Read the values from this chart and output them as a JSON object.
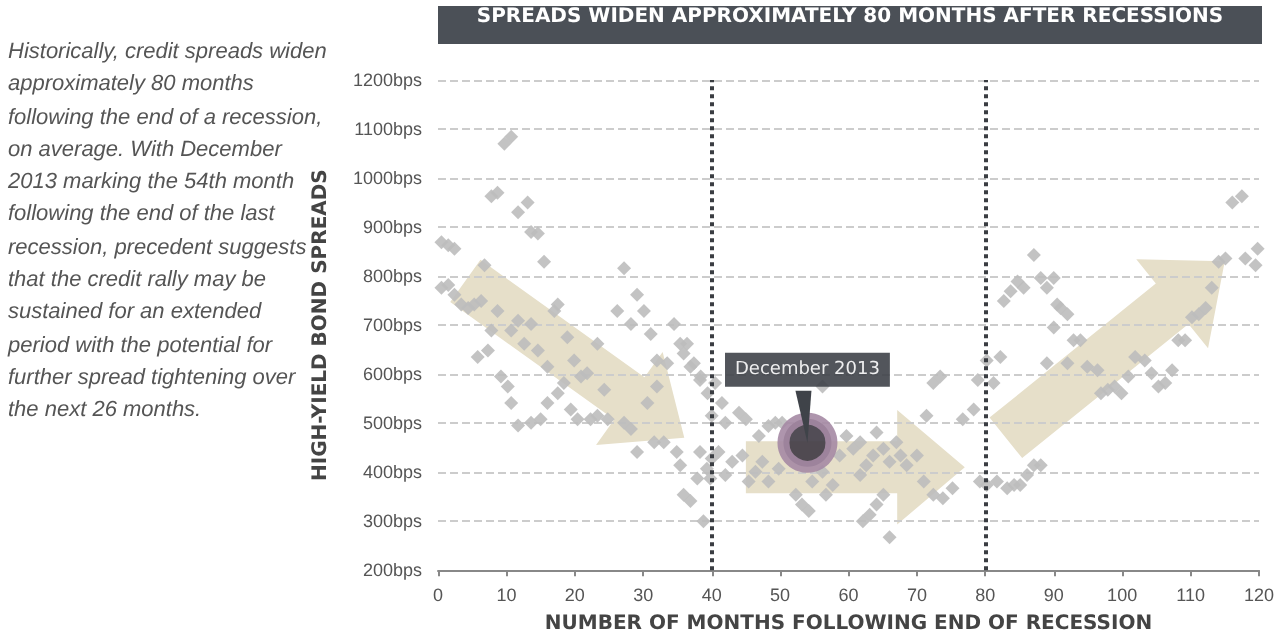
{
  "chart_data": {
    "type": "scatter",
    "title": "SPREADS WIDEN APPROXIMATELY 80 MONTHS AFTER RECESSIONS",
    "xlabel": "NUMBER OF MONTHS FOLLOWING END OF RECESSION",
    "ylabel": "HIGH-YIELD BOND SPREADS",
    "annotations": [
      "Historically, credit spreads widen approximately 80 months following the end of a recession, on average. With December 2013 marking the 54th month following the end of the last recession, precedent suggests that the credit rally may be sustained for an extended period with the potential for further spread tightening over the next 26 months.",
      {
        "text": "December 2013",
        "x": 54,
        "y": 460
      }
    ],
    "series": [
      {
        "color": "#bdbdbd",
        "x": [
          0.5,
          1.5,
          2.4,
          0.5,
          1.5,
          2.4,
          3.4,
          4.4,
          5.3,
          6.3,
          6.8,
          5.8,
          7.3,
          7.8,
          8.7,
          7.8,
          8.7,
          9.7,
          10.7,
          9.2,
          10.2,
          10.7,
          11.7,
          10.7,
          11.7,
          11.7,
          13.1,
          13.6,
          14.6,
          12.6,
          13.6,
          13.6,
          15,
          14.6,
          15.5,
          16,
          17,
          17.5,
          16,
          17.5,
          18.4,
          18.9,
          19.9,
          19.4,
          20.4,
          20.9,
          21.8,
          22.3,
          23.3,
          23.3,
          24.3,
          24.8,
          26.2,
          27.2,
          28.2,
          27.2,
          28.2,
          29.1,
          30.1,
          31.1,
          29.1,
          30.6,
          31.6,
          32,
          33.5,
          32,
          33,
          34.5,
          35.4,
          35.9,
          34.9,
          35.4,
          35.9,
          36.9,
          37.9,
          38.3,
          38.8,
          36.9,
          38.3,
          39.3,
          39.8,
          36.4,
          37.4,
          38.4,
          39.4,
          40.5,
          40,
          41.5,
          42,
          41,
          40,
          42,
          43,
          44,
          45,
          44.5,
          45.4,
          46.4,
          47.4,
          46.9,
          48.3,
          49.3,
          50.3,
          48.3,
          49.8,
          52.3,
          53.2,
          54.2,
          54.7,
          56.2,
          56.7,
          57.7,
          58.7,
          56.2,
          59.7,
          60.7,
          61.7,
          62.1,
          63.1,
          64.1,
          65.1,
          66,
          61.7,
          62.6,
          63.6,
          64.1,
          65.1,
          66,
          67,
          67.6,
          68.5,
          70,
          71,
          72.4,
          73.8,
          75.2,
          72.4,
          73.4,
          76.7,
          78.3,
          79.2,
          80.2,
          71.4,
          78.9,
          80.2,
          81.2,
          82.2,
          81.7,
          83.2,
          84.2,
          85.1,
          86.1,
          87.1,
          88.1,
          82.7,
          83.7,
          84.7,
          85.6,
          87.1,
          88.1,
          89,
          90,
          90,
          90.5,
          91,
          92,
          89,
          92,
          92.9,
          93.9,
          94.9,
          96.4,
          96.9,
          97.9,
          98.9,
          99.9,
          100.9,
          101.9,
          103.3,
          104.3,
          105.3,
          106.3,
          107.3,
          108.2,
          109.2,
          110.2,
          111.2,
          112.2,
          113.1,
          114.1,
          115.1,
          116.1,
          117.5,
          118,
          119.5,
          119.8
        ],
        "values": [
          869,
          863,
          856,
          776,
          782,
          762,
          742,
          735,
          742,
          749,
          822,
          635,
          648,
          689,
          729,
          963,
          970,
          1070,
          1084,
          595,
          575,
          541,
          495,
          689,
          709,
          930,
          950,
          890,
          887,
          662,
          702,
          501,
          508,
          648,
          829,
          615,
          729,
          742,
          541,
          561,
          582,
          675,
          628,
          528,
          508,
          595,
          602,
          508,
          515,
          662,
          568,
          508,
          729,
          816,
          702,
          501,
          488,
          762,
          729,
          682,
          441,
          541,
          461,
          628,
          622,
          575,
          461,
          702,
          662,
          642,
          441,
          414,
          354,
          341,
          387,
          441,
          300,
          615,
          588,
          407,
          387,
          662,
          622,
          595,
          561,
          582,
          515,
          541,
          501,
          441,
          428,
          394,
          421,
          521,
          508,
          434,
          381,
          401,
          421,
          474,
          494,
          501,
          501,
          381,
          407,
          354,
          334,
          321,
          381,
          401,
          354,
          374,
          434,
          575,
          474,
          448,
          461,
          300,
          313,
          334,
          354,
          267,
          394,
          414,
          434,
          481,
          448,
          421,
          461,
          434,
          414,
          434,
          381,
          354,
          347,
          367,
          582,
          595,
          508,
          528,
          381,
          628,
          515,
          588,
          374,
          582,
          635,
          381,
          367,
          374,
          374,
          394,
          414,
          414,
          749,
          769,
          789,
          776,
          843,
          796,
          776,
          796,
          695,
          742,
          735,
          722,
          622,
          622,
          669,
          669,
          615,
          608,
          561,
          568,
          575,
          561,
          595,
          635,
          628,
          602,
          575,
          582,
          608,
          669,
          669,
          716,
          722,
          735,
          776,
          829,
          836,
          950,
          963,
          836,
          822,
          856
        ]
      }
    ],
    "xlim": [
      0,
      120
    ],
    "xticks": [
      0,
      10,
      20,
      30,
      40,
      50,
      60,
      70,
      80,
      90,
      100,
      110,
      120
    ],
    "ylim": [
      200,
      1200
    ],
    "yticks": [
      {
        "value": 200,
        "label": "200bps"
      },
      {
        "value": 300,
        "label": "300bps"
      },
      {
        "value": 400,
        "label": "400bps"
      },
      {
        "value": 500,
        "label": "500bps"
      },
      {
        "value": 600,
        "label": "600bps"
      },
      {
        "value": 700,
        "label": "700bps"
      },
      {
        "value": 800,
        "label": "800bps"
      },
      {
        "value": 900,
        "label": "900bps"
      },
      {
        "value": 1000,
        "label": "1000bps"
      },
      {
        "value": 1100,
        "label": "1100bps"
      },
      {
        "value": 1200,
        "label": "1200bps"
      }
    ],
    "ref_lines": [
      {
        "axis": "x",
        "value": 40,
        "color": "#3a3d42",
        "line_style": "dotted"
      },
      {
        "axis": "x",
        "value": 80,
        "color": "#3a3d42",
        "line_style": "dotted"
      }
    ],
    "grid": "y",
    "marker": "diamond"
  }
}
